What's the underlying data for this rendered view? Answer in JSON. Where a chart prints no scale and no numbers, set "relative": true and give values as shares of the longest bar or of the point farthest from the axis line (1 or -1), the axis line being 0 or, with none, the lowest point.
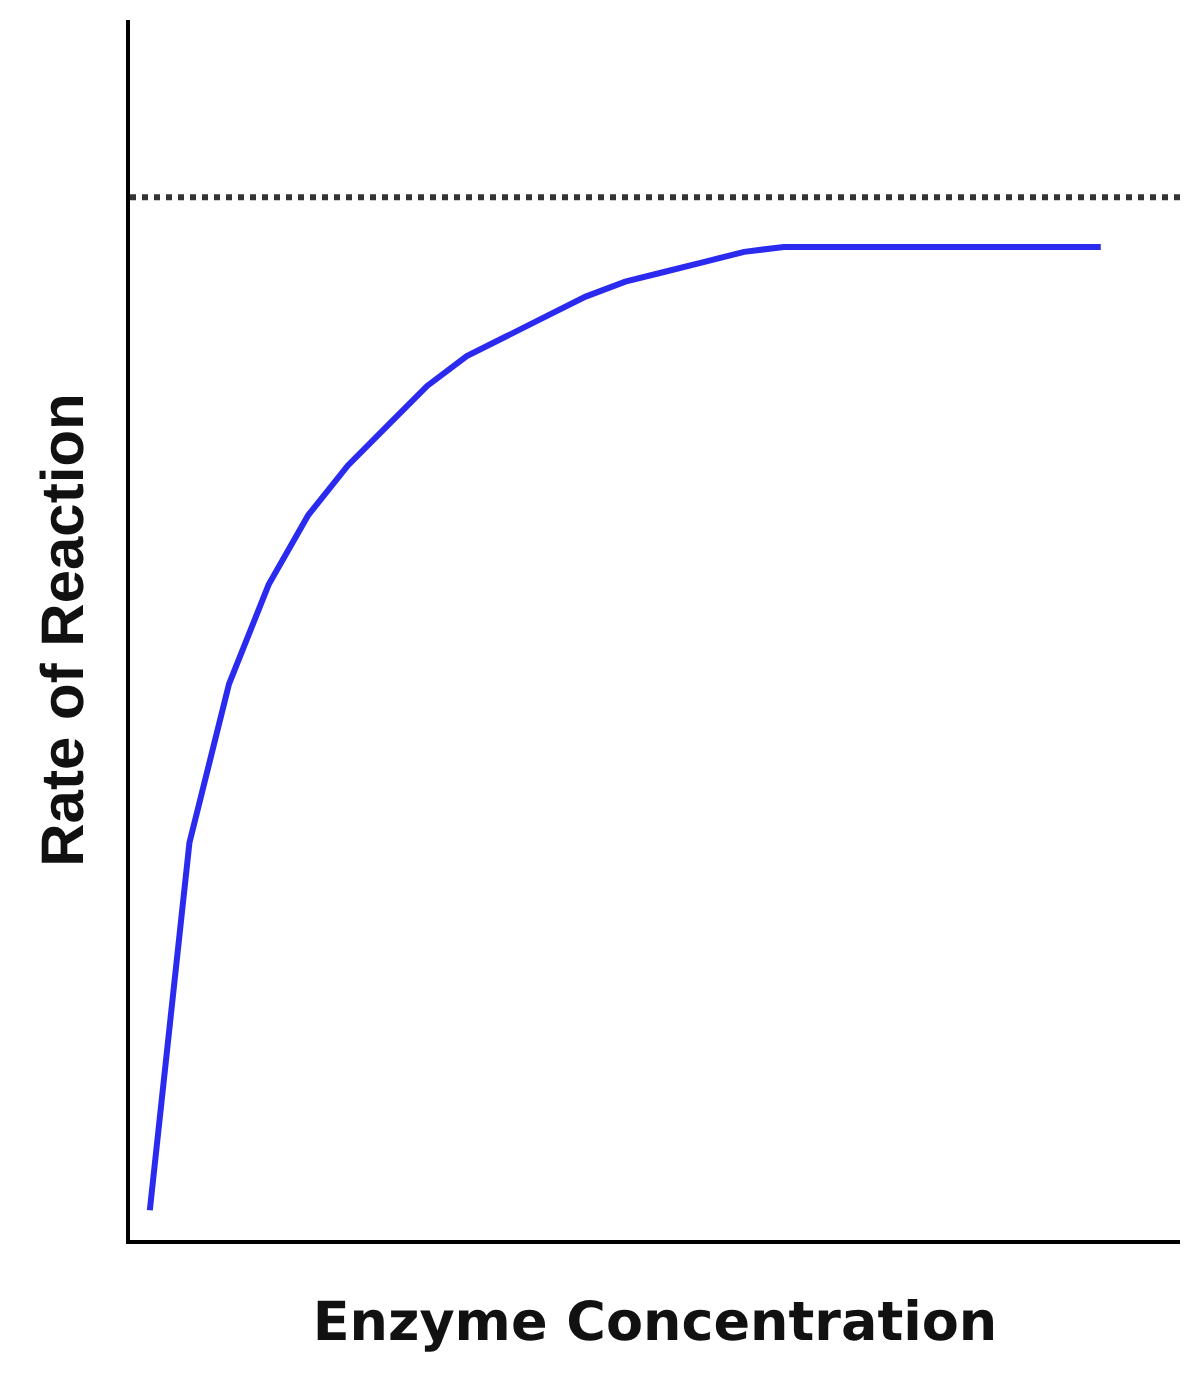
{
  "chart_data": {
    "type": "line",
    "relative": true,
    "xlabel": "Enzyme Concentration",
    "ylabel": "Rate of Reaction",
    "categories": [
      null,
      null,
      null,
      null,
      null,
      null,
      null,
      null,
      null,
      null,
      null,
      null,
      null,
      null,
      null,
      null,
      null,
      null,
      null,
      null,
      null,
      null,
      null,
      null,
      null
    ],
    "series": [
      {
        "color": "#2b2bf0",
        "values": [
          0.03,
          0.4,
          0.56,
          0.66,
          0.73,
          0.78,
          0.82,
          0.86,
          0.89,
          0.91,
          0.93,
          0.95,
          0.965,
          0.975,
          0.985,
          0.995,
          1,
          1,
          1,
          1,
          1,
          1,
          1,
          1,
          1
        ]
      }
    ],
    "ref_lines": [
      {
        "axis": "y",
        "value": 1.05,
        "color": "#333333",
        "line_style": "dotted"
      }
    ],
    "line_style": "solid"
  }
}
